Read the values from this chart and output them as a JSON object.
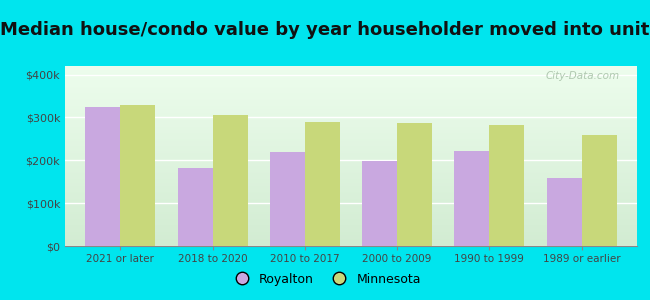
{
  "title": "Median house/condo value by year householder moved into unit",
  "categories": [
    "2021 or later",
    "2018 to 2020",
    "2010 to 2017",
    "2000 to 2009",
    "1990 to 1999",
    "1989 or earlier"
  ],
  "royalton_values": [
    325000,
    183000,
    220000,
    198000,
    222000,
    158000
  ],
  "minnesota_values": [
    330000,
    305000,
    290000,
    288000,
    283000,
    258000
  ],
  "royalton_color": "#c9a8e0",
  "minnesota_color": "#c8d87a",
  "background_outer": "#00e5ee",
  "background_inner_top": "#edfded",
  "background_inner_bottom": "#d2ecd2",
  "title_fontsize": 13,
  "ylabel_ticks": [
    0,
    100000,
    200000,
    300000,
    400000
  ],
  "ylabel_labels": [
    "$0",
    "$100k",
    "$200k",
    "$300k",
    "$400k"
  ],
  "ylim": [
    0,
    420000
  ],
  "bar_width": 0.38,
  "legend_royalton": "Royalton",
  "legend_minnesota": "Minnesota",
  "watermark": "City-Data.com",
  "watermark_color": "#b0c8b0"
}
